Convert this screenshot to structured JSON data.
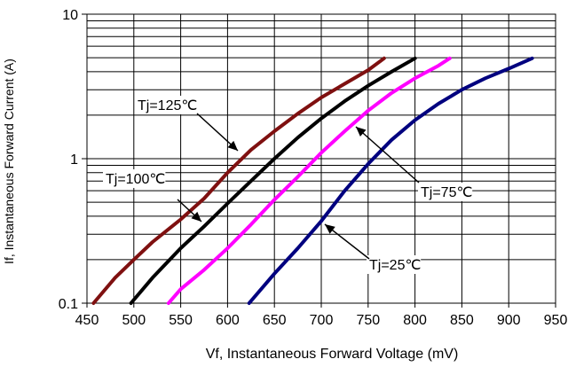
{
  "chart_data": {
    "type": "line",
    "title": "",
    "xlabel": "Vf, Instantaneous Forward  Voltage (mV)",
    "ylabel": "If, Instantaneous Forward Current (A)",
    "x_scale": "linear",
    "y_scale": "log",
    "xlim": [
      450,
      950
    ],
    "ylim": [
      0.1,
      10
    ],
    "x_ticks": [
      450,
      500,
      550,
      600,
      650,
      700,
      750,
      800,
      850,
      900,
      950
    ],
    "x_tick_labels": [
      "450",
      "500",
      "550",
      "600",
      "650",
      "700",
      "750",
      "800",
      "850",
      "900",
      "950"
    ],
    "y_ticks": [
      0.1,
      1,
      10
    ],
    "y_tick_labels": [
      "0.1",
      "1",
      "10"
    ],
    "grid": true,
    "legend": "none",
    "series": [
      {
        "name": "Tj=125℃",
        "color": "#7f1010",
        "points": [
          [
            457,
            0.1
          ],
          [
            480,
            0.15
          ],
          [
            500,
            0.2
          ],
          [
            520,
            0.265
          ],
          [
            550,
            0.38
          ],
          [
            575,
            0.53
          ],
          [
            600,
            0.8
          ],
          [
            625,
            1.15
          ],
          [
            650,
            1.55
          ],
          [
            675,
            2.05
          ],
          [
            700,
            2.65
          ],
          [
            725,
            3.3
          ],
          [
            750,
            4.1
          ],
          [
            767,
            4.95
          ]
        ]
      },
      {
        "name": "Tj=100℃",
        "color": "#000000",
        "points": [
          [
            497,
            0.1
          ],
          [
            520,
            0.15
          ],
          [
            550,
            0.24
          ],
          [
            575,
            0.34
          ],
          [
            600,
            0.49
          ],
          [
            625,
            0.7
          ],
          [
            650,
            1.0
          ],
          [
            675,
            1.4
          ],
          [
            700,
            1.9
          ],
          [
            725,
            2.5
          ],
          [
            750,
            3.2
          ],
          [
            775,
            4.0
          ],
          [
            800,
            4.95
          ]
        ]
      },
      {
        "name": "Tj=75℃",
        "color": "#ff00ff",
        "points": [
          [
            537,
            0.1
          ],
          [
            550,
            0.125
          ],
          [
            575,
            0.17
          ],
          [
            600,
            0.24
          ],
          [
            625,
            0.35
          ],
          [
            650,
            0.52
          ],
          [
            675,
            0.75
          ],
          [
            700,
            1.1
          ],
          [
            725,
            1.55
          ],
          [
            750,
            2.15
          ],
          [
            775,
            2.85
          ],
          [
            800,
            3.6
          ],
          [
            825,
            4.4
          ],
          [
            837,
            4.95
          ]
        ]
      },
      {
        "name": "Tj=25℃",
        "color": "#00007f",
        "points": [
          [
            623,
            0.1
          ],
          [
            650,
            0.16
          ],
          [
            675,
            0.24
          ],
          [
            700,
            0.37
          ],
          [
            725,
            0.6
          ],
          [
            750,
            0.92
          ],
          [
            775,
            1.35
          ],
          [
            800,
            1.85
          ],
          [
            825,
            2.4
          ],
          [
            850,
            3.0
          ],
          [
            875,
            3.6
          ],
          [
            900,
            4.2
          ],
          [
            925,
            4.95
          ]
        ]
      }
    ],
    "annotations": [
      {
        "text": "Tj=125℃",
        "series": 0
      },
      {
        "text": "Tj=100℃",
        "series": 1
      },
      {
        "text": "Tj=75℃",
        "series": 2
      },
      {
        "text": "Tj=25℃",
        "series": 3
      }
    ]
  }
}
